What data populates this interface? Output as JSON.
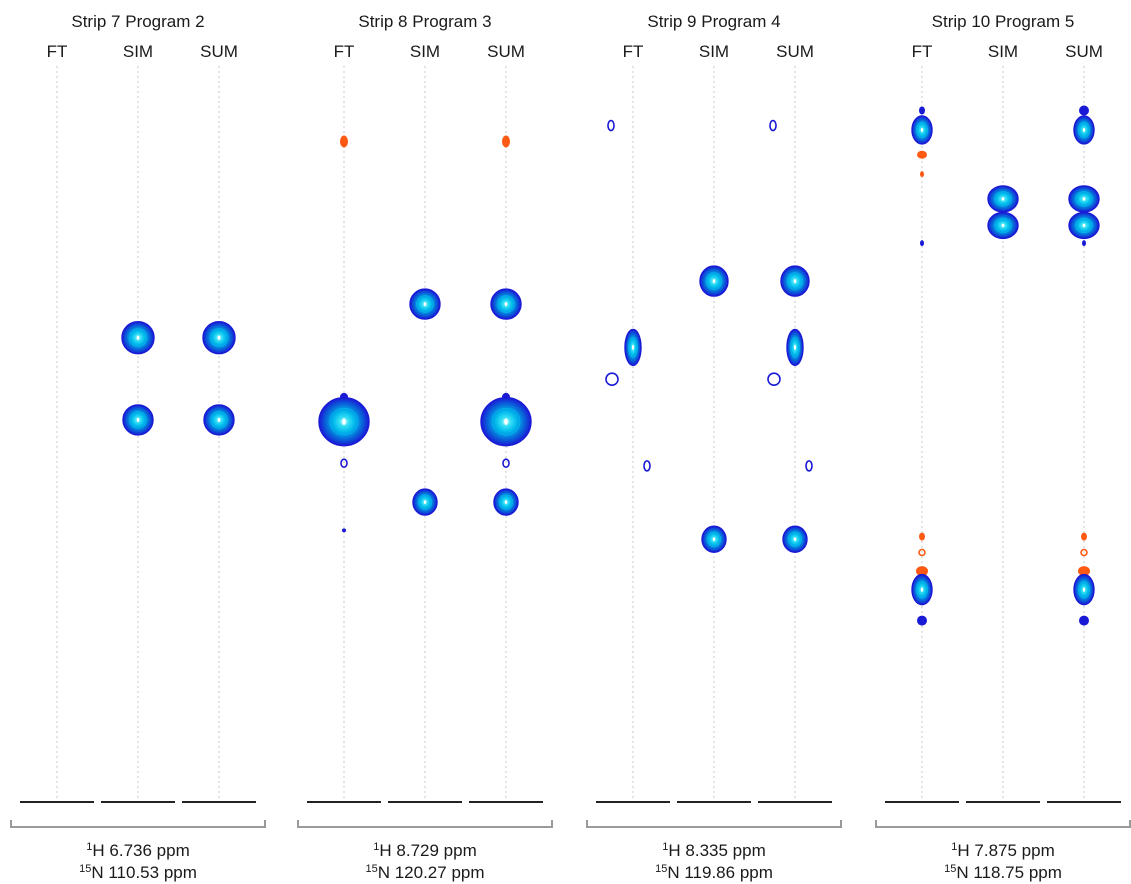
{
  "figure": {
    "colors": {
      "positive_outer": "#1a1ad6",
      "positive_mid": "#0a5fd8",
      "positive_inner": "#00c8ee",
      "negative": "#ff5a14",
      "gridline": "#c8c8c8",
      "baseline": "#222222",
      "bracket": "#9a9a9a"
    }
  },
  "chart_data": [
    {
      "type": "contour",
      "title": "Strip 7 Program 2",
      "columns": [
        "FT",
        "SIM",
        "SUM"
      ],
      "h_ppm_label": "6.736 ppm",
      "n_ppm_label": "110.53 ppm",
      "peaks": [
        {
          "column": "SIM",
          "y": 0.382,
          "w": 16,
          "h": 16,
          "kind": "round",
          "sign": "positive"
        },
        {
          "column": "SIM",
          "y": 0.475,
          "w": 15,
          "h": 15,
          "kind": "round",
          "sign": "positive"
        },
        {
          "column": "SUM",
          "y": 0.382,
          "w": 16,
          "h": 16,
          "kind": "round",
          "sign": "positive"
        },
        {
          "column": "SUM",
          "y": 0.475,
          "w": 15,
          "h": 15,
          "kind": "round",
          "sign": "positive"
        }
      ]
    },
    {
      "type": "contour",
      "title": "Strip 8 Program 3",
      "columns": [
        "FT",
        "SIM",
        "SUM"
      ],
      "h_ppm_label": "8.729 ppm",
      "n_ppm_label": "120.27 ppm",
      "peaks": [
        {
          "column": "FT",
          "y": 0.16,
          "w": 4,
          "h": 6,
          "kind": "solid",
          "sign": "negative"
        },
        {
          "column": "FT",
          "y": 0.449,
          "w": 4,
          "h": 4,
          "kind": "solid",
          "sign": "positive"
        },
        {
          "column": "FT",
          "y": 0.477,
          "w": 25,
          "h": 24,
          "kind": "round",
          "sign": "positive"
        },
        {
          "column": "FT",
          "y": 0.524,
          "w": 3,
          "h": 4,
          "kind": "ring",
          "sign": "positive"
        },
        {
          "column": "FT",
          "y": 0.6,
          "w": 2,
          "h": 2,
          "kind": "solid",
          "sign": "positive"
        },
        {
          "column": "SIM",
          "y": 0.344,
          "w": 15,
          "h": 15,
          "kind": "round",
          "sign": "positive"
        },
        {
          "column": "SIM",
          "y": 0.568,
          "w": 12,
          "h": 13,
          "kind": "round",
          "sign": "positive"
        },
        {
          "column": "SUM",
          "y": 0.16,
          "w": 4,
          "h": 6,
          "kind": "solid",
          "sign": "negative"
        },
        {
          "column": "SUM",
          "y": 0.344,
          "w": 15,
          "h": 15,
          "kind": "round",
          "sign": "positive"
        },
        {
          "column": "SUM",
          "y": 0.449,
          "w": 4,
          "h": 4,
          "kind": "solid",
          "sign": "positive"
        },
        {
          "column": "SUM",
          "y": 0.477,
          "w": 25,
          "h": 24,
          "kind": "round",
          "sign": "positive"
        },
        {
          "column": "SUM",
          "y": 0.524,
          "w": 3,
          "h": 4,
          "kind": "ring",
          "sign": "positive"
        },
        {
          "column": "SUM",
          "y": 0.568,
          "w": 12,
          "h": 13,
          "kind": "round",
          "sign": "positive"
        }
      ]
    },
    {
      "type": "contour",
      "title": "Strip 9 Program 4",
      "columns": [
        "FT",
        "SIM",
        "SUM"
      ],
      "h_ppm_label": "8.335 ppm",
      "n_ppm_label": "119.86 ppm",
      "peaks": [
        {
          "column": "FT",
          "dx": -22,
          "y": 0.142,
          "w": 3,
          "h": 5,
          "kind": "ring",
          "sign": "positive"
        },
        {
          "column": "FT",
          "y": 0.393,
          "w": 8,
          "h": 18,
          "kind": "round",
          "sign": "positive"
        },
        {
          "column": "FT",
          "dx": -21,
          "y": 0.429,
          "w": 6,
          "h": 6,
          "kind": "ring",
          "sign": "positive"
        },
        {
          "column": "FT",
          "dx": 14,
          "y": 0.527,
          "w": 3,
          "h": 5,
          "kind": "ring",
          "sign": "positive"
        },
        {
          "column": "SIM",
          "y": 0.318,
          "w": 14,
          "h": 15,
          "kind": "round",
          "sign": "positive"
        },
        {
          "column": "SIM",
          "y": 0.61,
          "w": 12,
          "h": 13,
          "kind": "round",
          "sign": "positive"
        },
        {
          "column": "SUM",
          "dx": -22,
          "y": 0.142,
          "w": 3,
          "h": 5,
          "kind": "ring",
          "sign": "positive"
        },
        {
          "column": "SUM",
          "y": 0.318,
          "w": 14,
          "h": 15,
          "kind": "round",
          "sign": "positive"
        },
        {
          "column": "SUM",
          "y": 0.393,
          "w": 8,
          "h": 18,
          "kind": "round",
          "sign": "positive"
        },
        {
          "column": "SUM",
          "dx": -21,
          "y": 0.429,
          "w": 6,
          "h": 6,
          "kind": "ring",
          "sign": "positive"
        },
        {
          "column": "SUM",
          "dx": 14,
          "y": 0.527,
          "w": 3,
          "h": 5,
          "kind": "ring",
          "sign": "positive"
        },
        {
          "column": "SUM",
          "y": 0.61,
          "w": 12,
          "h": 13,
          "kind": "round",
          "sign": "positive"
        }
      ]
    },
    {
      "type": "contour",
      "title": "Strip 10 Program 5",
      "columns": [
        "FT",
        "SIM",
        "SUM"
      ],
      "h_ppm_label": "7.875 ppm",
      "n_ppm_label": "118.75 ppm",
      "peaks": [
        {
          "column": "FT",
          "y": 0.125,
          "w": 3,
          "h": 4,
          "kind": "solid",
          "sign": "positive"
        },
        {
          "column": "FT",
          "y": 0.147,
          "w": 10,
          "h": 14,
          "kind": "round",
          "sign": "positive"
        },
        {
          "column": "FT",
          "y": 0.175,
          "w": 5,
          "h": 4,
          "kind": "solid",
          "sign": "negative"
        },
        {
          "column": "FT",
          "y": 0.197,
          "w": 2,
          "h": 3,
          "kind": "solid",
          "sign": "negative"
        },
        {
          "column": "FT",
          "y": 0.275,
          "w": 2,
          "h": 3,
          "kind": "solid",
          "sign": "positive"
        },
        {
          "column": "FT",
          "y": 0.607,
          "w": 3,
          "h": 4,
          "kind": "solid",
          "sign": "negative"
        },
        {
          "column": "FT",
          "y": 0.625,
          "w": 3,
          "h": 3,
          "kind": "ring",
          "sign": "negative"
        },
        {
          "column": "FT",
          "y": 0.646,
          "w": 6,
          "h": 5,
          "kind": "solid",
          "sign": "negative"
        },
        {
          "column": "FT",
          "y": 0.667,
          "w": 10,
          "h": 15,
          "kind": "round",
          "sign": "positive"
        },
        {
          "column": "FT",
          "y": 0.702,
          "w": 5,
          "h": 5,
          "kind": "solid",
          "sign": "positive"
        },
        {
          "column": "SIM",
          "y": 0.225,
          "w": 15,
          "h": 13,
          "kind": "round",
          "sign": "positive"
        },
        {
          "column": "SIM",
          "y": 0.255,
          "w": 15,
          "h": 13,
          "kind": "round",
          "sign": "positive"
        },
        {
          "column": "SUM",
          "y": 0.125,
          "w": 5,
          "h": 5,
          "kind": "solid",
          "sign": "positive"
        },
        {
          "column": "SUM",
          "y": 0.147,
          "w": 10,
          "h": 14,
          "kind": "round",
          "sign": "positive"
        },
        {
          "column": "SUM",
          "y": 0.225,
          "w": 15,
          "h": 13,
          "kind": "round",
          "sign": "positive"
        },
        {
          "column": "SUM",
          "y": 0.255,
          "w": 15,
          "h": 13,
          "kind": "round",
          "sign": "positive"
        },
        {
          "column": "SUM",
          "y": 0.275,
          "w": 2,
          "h": 3,
          "kind": "solid",
          "sign": "positive"
        },
        {
          "column": "SUM",
          "y": 0.607,
          "w": 3,
          "h": 4,
          "kind": "solid",
          "sign": "negative"
        },
        {
          "column": "SUM",
          "y": 0.625,
          "w": 3,
          "h": 3,
          "kind": "ring",
          "sign": "negative"
        },
        {
          "column": "SUM",
          "y": 0.646,
          "w": 6,
          "h": 5,
          "kind": "solid",
          "sign": "negative"
        },
        {
          "column": "SUM",
          "y": 0.667,
          "w": 10,
          "h": 15,
          "kind": "round",
          "sign": "positive"
        },
        {
          "column": "SUM",
          "y": 0.702,
          "w": 5,
          "h": 5,
          "kind": "solid",
          "sign": "positive"
        }
      ]
    }
  ]
}
